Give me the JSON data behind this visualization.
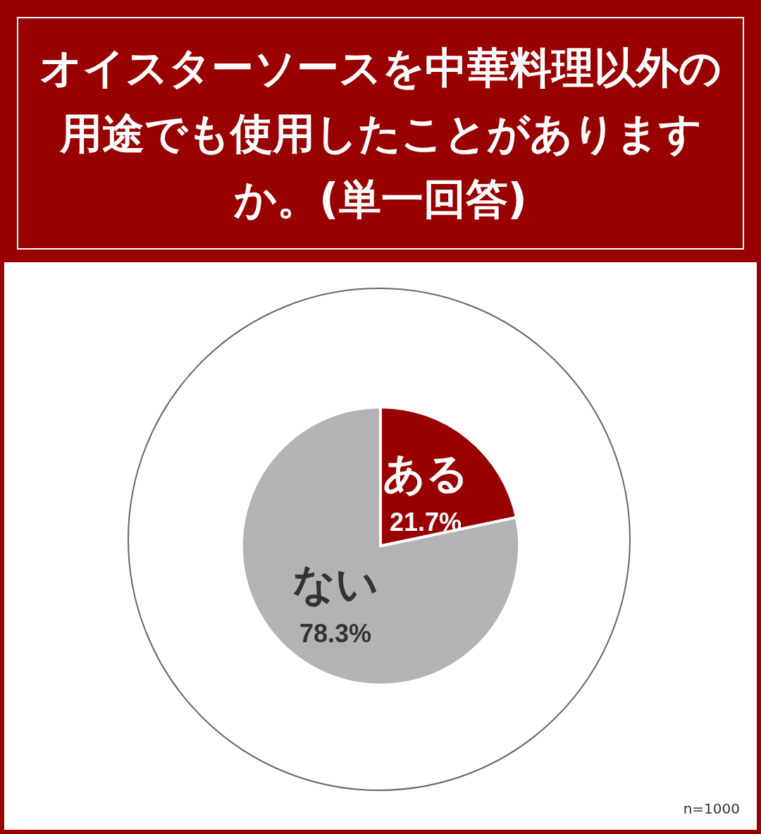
{
  "chart_data": {
    "type": "pie",
    "title": "オイスターソースを中華料理以外の用途でも使用したことがありますか。(単一回答)",
    "categories": [
      "ある",
      "ない"
    ],
    "values": [
      21.7,
      78.3
    ],
    "colors": [
      "#990000",
      "#b3b3b3"
    ],
    "value_labels": [
      "21.7%",
      "78.3%"
    ],
    "annotations": [
      "n=1000"
    ],
    "legend": false
  }
}
